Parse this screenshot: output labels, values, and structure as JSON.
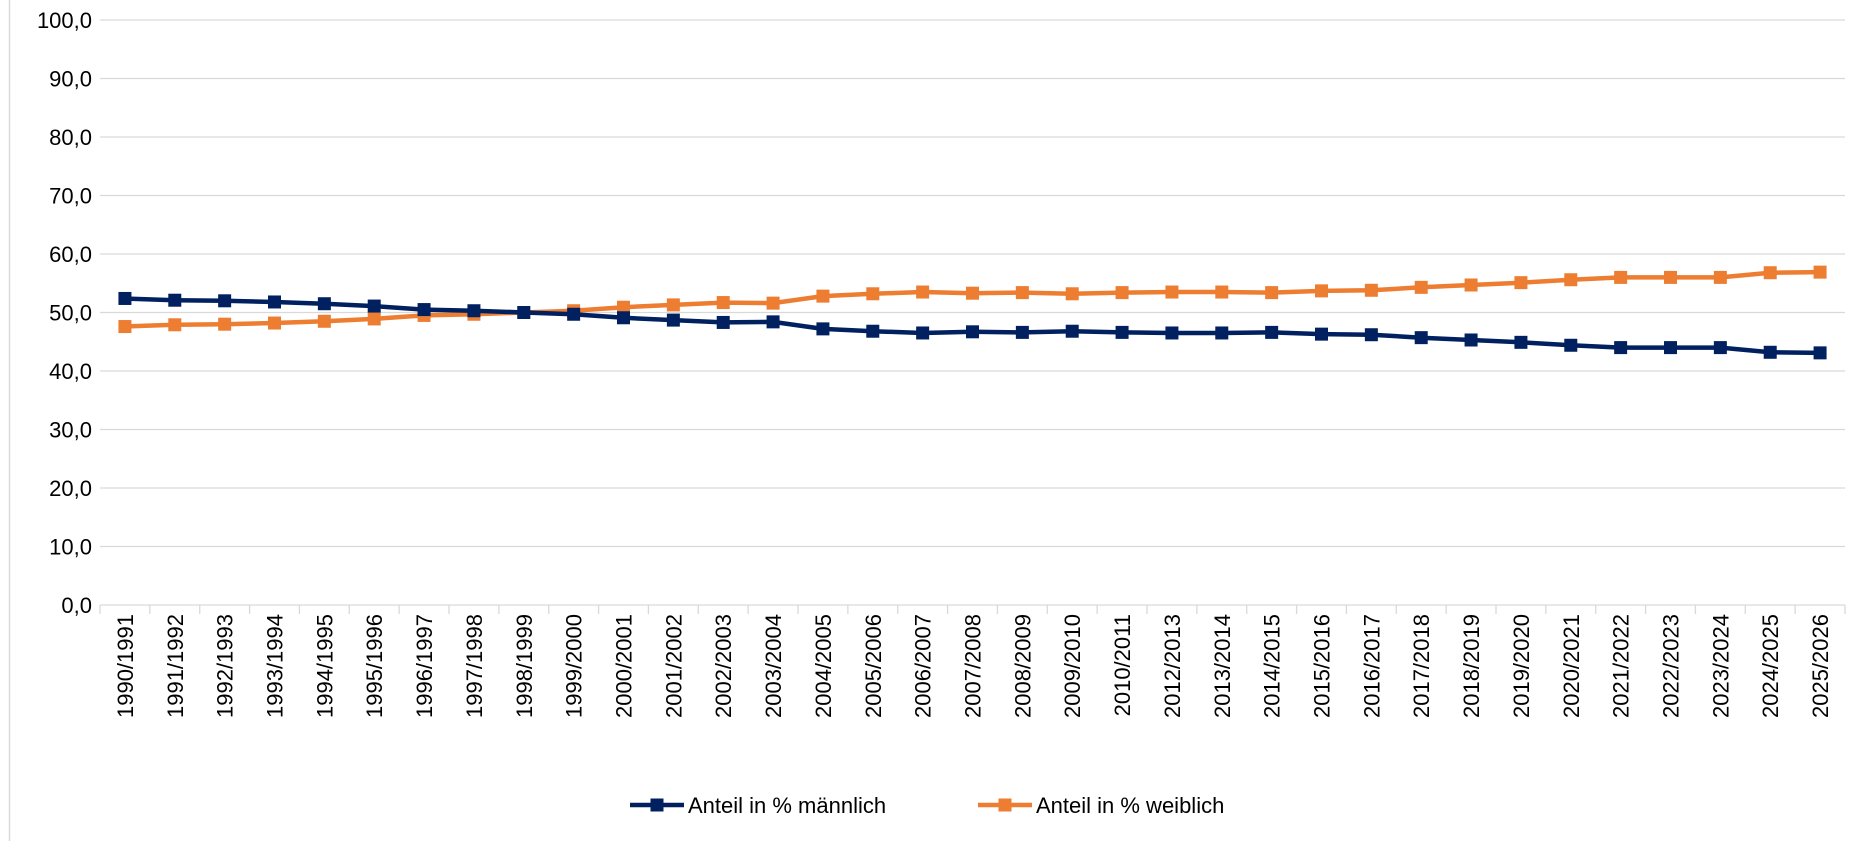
{
  "chart_data": {
    "type": "line",
    "categories": [
      "1990/1991",
      "1991/1992",
      "1992/1993",
      "1993/1994",
      "1994/1995",
      "1995/1996",
      "1996/1997",
      "1997/1998",
      "1998/1999",
      "1999/2000",
      "2000/2001",
      "2001/2002",
      "2002/2003",
      "2003/2004",
      "2004/2005",
      "2005/2006",
      "2006/2007",
      "2007/2008",
      "2008/2009",
      "2009/2010",
      "2010/2011",
      "2012/2013",
      "2013/2014",
      "2014/2015",
      "2015/2016",
      "2016/2017",
      "2017/2018",
      "2018/2019",
      "2019/2020",
      "2020/2021",
      "2021/2022",
      "2022/2023",
      "2023/2024",
      "2024/2025",
      "2025/2026"
    ],
    "series": [
      {
        "name": "Anteil in % männlich",
        "color": "#002060",
        "values": [
          52.4,
          52.1,
          52.0,
          51.8,
          51.5,
          51.1,
          50.5,
          50.3,
          50.0,
          49.7,
          49.1,
          48.7,
          48.3,
          48.4,
          47.2,
          46.8,
          46.5,
          46.7,
          46.6,
          46.8,
          46.6,
          46.5,
          46.5,
          46.6,
          46.3,
          46.2,
          45.7,
          45.3,
          44.9,
          44.4,
          44.0,
          44.0,
          44.0,
          43.2,
          43.1
        ]
      },
      {
        "name": "Anteil in % weiblich",
        "color": "#ED7D31",
        "values": [
          47.6,
          47.9,
          48.0,
          48.2,
          48.5,
          48.9,
          49.5,
          49.7,
          50.0,
          50.3,
          50.9,
          51.3,
          51.7,
          51.6,
          52.8,
          53.2,
          53.5,
          53.3,
          53.4,
          53.2,
          53.4,
          53.5,
          53.5,
          53.4,
          53.7,
          53.8,
          54.3,
          54.7,
          55.1,
          55.6,
          56.0,
          56.0,
          56.0,
          56.8,
          56.9
        ]
      }
    ],
    "yticks": [
      "0,0",
      "10,0",
      "20,0",
      "30,0",
      "40,0",
      "50,0",
      "60,0",
      "70,0",
      "80,0",
      "90,0",
      "100,0"
    ],
    "ylim": [
      0,
      100
    ],
    "grid": true,
    "legend_position": "bottom",
    "title": "",
    "xlabel": "",
    "ylabel": ""
  }
}
